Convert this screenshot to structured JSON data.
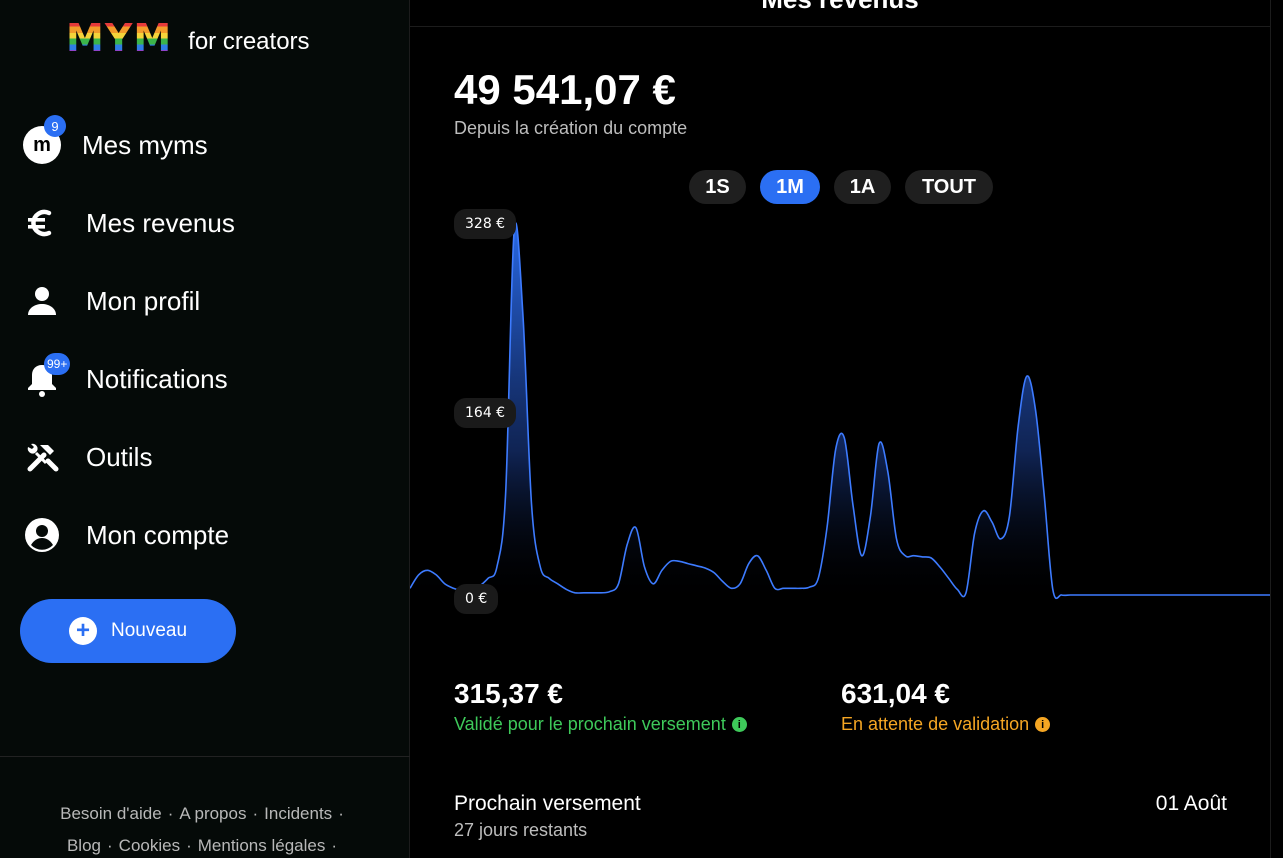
{
  "logo": {
    "brand": "MYM",
    "subtitle": "for creators"
  },
  "nav": [
    {
      "label": "Mes myms",
      "icon": "avatar-m",
      "badge": "9"
    },
    {
      "label": "Mes revenus",
      "icon": "euro-icon"
    },
    {
      "label": "Mon profil",
      "icon": "person-icon"
    },
    {
      "label": "Notifications",
      "icon": "bell-icon",
      "badge": "99+"
    },
    {
      "label": "Outils",
      "icon": "tools-icon"
    },
    {
      "label": "Mon compte",
      "icon": "account-circle-icon"
    }
  ],
  "avatar_letter": "m",
  "new_button": {
    "label": "Nouveau",
    "icon": "plus-circle-icon"
  },
  "footer": {
    "links": [
      "Besoin d'aide",
      "A propos",
      "Incidents",
      "Blog",
      "Cookies",
      "Mentions légales"
    ],
    "separator": "·"
  },
  "main": {
    "title": "Mes revenus",
    "total": "49 541,07 €",
    "total_sub": "Depuis la création du compte",
    "periods": [
      {
        "label": "1S",
        "active": false
      },
      {
        "label": "1M",
        "active": true
      },
      {
        "label": "1A",
        "active": false
      },
      {
        "label": "TOUT",
        "active": false
      }
    ],
    "stats": [
      {
        "value": "315,37 €",
        "label": "Validé pour le prochain versement",
        "color": "#3ec95a"
      },
      {
        "value": "631,04 €",
        "label": "En attente de validation",
        "color": "#f5a623"
      }
    ],
    "payout": {
      "title": "Prochain versement",
      "subtitle": "27 jours restants",
      "date": "01 Août"
    }
  },
  "colors": {
    "accent": "#2b6ff3",
    "green": "#3ec95a",
    "orange": "#f5a623"
  },
  "chart_data": {
    "type": "area",
    "y_tick_labels": [
      "328 €",
      "164 €",
      "0 €"
    ],
    "ylim": [
      0,
      328
    ],
    "grid": false,
    "legend": "none",
    "x": [
      0,
      1,
      2,
      3,
      4,
      5,
      6,
      7,
      8,
      9,
      10,
      11,
      12,
      13,
      14,
      15,
      16,
      17,
      18,
      19,
      20,
      21,
      22,
      23,
      24,
      25,
      26,
      27,
      28,
      29,
      30,
      31,
      32,
      33,
      34,
      35,
      36,
      37,
      38,
      39,
      40,
      41,
      42,
      43,
      44,
      45,
      46,
      47,
      48,
      49,
      50,
      51,
      52,
      53,
      54,
      55,
      56,
      57,
      58,
      59,
      60,
      61,
      62,
      63,
      64,
      65,
      66,
      67,
      68,
      69,
      70,
      71,
      72,
      73,
      74,
      75,
      76,
      77,
      78,
      79,
      80,
      81,
      82,
      83,
      84,
      85,
      86,
      87,
      88,
      89,
      90,
      91,
      92,
      93,
      94,
      95,
      96,
      97,
      98,
      99
    ],
    "values": [
      6,
      18,
      22,
      18,
      10,
      6,
      4,
      5,
      8,
      15,
      25,
      90,
      325,
      250,
      80,
      25,
      15,
      10,
      5,
      2,
      2,
      2,
      2,
      3,
      10,
      45,
      60,
      25,
      10,
      22,
      30,
      30,
      28,
      26,
      24,
      20,
      12,
      6,
      10,
      28,
      35,
      22,
      6,
      6,
      6,
      6,
      7,
      15,
      60,
      130,
      140,
      80,
      35,
      70,
      135,
      110,
      50,
      35,
      35,
      34,
      33,
      25,
      15,
      5,
      2,
      55,
      75,
      65,
      50,
      70,
      150,
      195,
      165,
      90,
      5,
      0,
      0,
      0,
      0,
      0,
      0,
      0,
      0,
      0,
      0,
      0,
      0,
      0,
      0,
      0,
      0,
      0,
      0,
      0,
      0,
      0,
      0,
      0,
      0,
      0
    ]
  }
}
